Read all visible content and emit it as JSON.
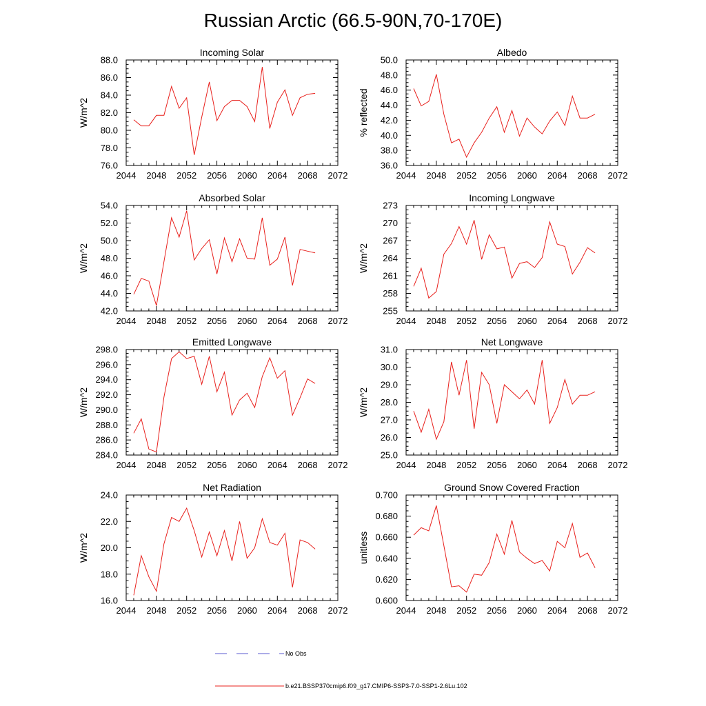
{
  "figure": {
    "title": "Russian Arctic (66.5-90N,70-170E)"
  },
  "colors": {
    "model_line": "#e8201c",
    "obs_line": "#5a5ad2",
    "axis": "#000000"
  },
  "legend": {
    "obs_label": "No Obs",
    "model_label": "b.e21.BSSP370cmip6.f09_g17.CMIP6-SSP3-7.0-SSP1-2.6Lu.102"
  },
  "chart_data": [
    {
      "type": "line",
      "title": "Incoming Solar",
      "ylabel": "W/m^2",
      "xlim": [
        2044,
        2072
      ],
      "xticks": [
        2044,
        2048,
        2052,
        2056,
        2060,
        2064,
        2068,
        2072
      ],
      "ylim": [
        76.0,
        88.0
      ],
      "yticks": [
        "76.0",
        "78.0",
        "80.0",
        "82.0",
        "84.0",
        "86.0",
        "88.0"
      ],
      "x": [
        2045,
        2046,
        2047,
        2048,
        2049,
        2050,
        2051,
        2052,
        2053,
        2054,
        2055,
        2056,
        2057,
        2058,
        2059,
        2060,
        2061,
        2062,
        2063,
        2064,
        2065,
        2066,
        2067,
        2068,
        2069
      ],
      "series": [
        {
          "values": [
            81.2,
            80.5,
            80.5,
            81.7,
            81.7,
            85.0,
            82.5,
            83.7,
            77.2,
            81.5,
            85.5,
            81.1,
            82.7,
            83.4,
            83.4,
            82.7,
            81.0,
            87.2,
            80.2,
            83.2,
            84.6,
            81.7,
            83.7,
            84.1,
            84.2
          ]
        }
      ]
    },
    {
      "type": "line",
      "title": "Albedo",
      "ylabel": "% reflected",
      "xlim": [
        2044,
        2072
      ],
      "xticks": [
        2044,
        2048,
        2052,
        2056,
        2060,
        2064,
        2068,
        2072
      ],
      "ylim": [
        36.0,
        50.0
      ],
      "yticks": [
        "36.0",
        "38.0",
        "40.0",
        "42.0",
        "44.0",
        "46.0",
        "48.0",
        "50.0"
      ],
      "x": [
        2045,
        2046,
        2047,
        2048,
        2049,
        2050,
        2051,
        2052,
        2053,
        2054,
        2055,
        2056,
        2057,
        2058,
        2059,
        2060,
        2061,
        2062,
        2063,
        2064,
        2065,
        2066,
        2067,
        2068,
        2069
      ],
      "series": [
        {
          "values": [
            46.2,
            43.9,
            44.5,
            48.1,
            42.8,
            39.0,
            39.5,
            37.1,
            39.0,
            40.4,
            42.3,
            43.8,
            40.4,
            43.3,
            39.9,
            42.3,
            41.1,
            40.2,
            41.9,
            43.1,
            41.3,
            45.2,
            42.3,
            42.3,
            42.8
          ]
        }
      ]
    },
    {
      "type": "line",
      "title": "Absorbed Solar",
      "ylabel": "W/m^2",
      "xlim": [
        2044,
        2072
      ],
      "xticks": [
        2044,
        2048,
        2052,
        2056,
        2060,
        2064,
        2068,
        2072
      ],
      "ylim": [
        42.0,
        54.0
      ],
      "yticks": [
        "42.0",
        "44.0",
        "46.0",
        "48.0",
        "50.0",
        "52.0",
        "54.0"
      ],
      "x": [
        2045,
        2046,
        2047,
        2048,
        2049,
        2050,
        2051,
        2052,
        2053,
        2054,
        2055,
        2056,
        2057,
        2058,
        2059,
        2060,
        2061,
        2062,
        2063,
        2064,
        2065,
        2066,
        2067,
        2068,
        2069
      ],
      "series": [
        {
          "values": [
            43.9,
            45.7,
            45.4,
            42.6,
            47.6,
            52.6,
            50.4,
            53.4,
            47.8,
            49.1,
            50.1,
            46.2,
            50.3,
            47.6,
            50.2,
            48.0,
            47.9,
            52.6,
            47.2,
            47.9,
            50.4,
            44.9,
            49.0,
            48.8,
            48.6
          ]
        }
      ]
    },
    {
      "type": "line",
      "title": "Incoming Longwave",
      "ylabel": "W/m^2",
      "xlim": [
        2044,
        2072
      ],
      "xticks": [
        2044,
        2048,
        2052,
        2056,
        2060,
        2064,
        2068,
        2072
      ],
      "ylim": [
        255,
        273
      ],
      "yticks": [
        "255",
        "258",
        "261",
        "264",
        "267",
        "270",
        "273"
      ],
      "x": [
        2045,
        2046,
        2047,
        2048,
        2049,
        2050,
        2051,
        2052,
        2053,
        2054,
        2055,
        2056,
        2057,
        2058,
        2059,
        2060,
        2061,
        2062,
        2063,
        2064,
        2065,
        2066,
        2067,
        2068,
        2069
      ],
      "series": [
        {
          "values": [
            259.2,
            262.3,
            257.2,
            258.3,
            264.7,
            266.5,
            269.4,
            266.4,
            270.5,
            263.8,
            268.0,
            265.6,
            265.9,
            260.6,
            263.1,
            263.4,
            262.4,
            264.1,
            270.2,
            266.4,
            266.0,
            261.3,
            263.3,
            265.8,
            264.9
          ]
        }
      ]
    },
    {
      "type": "line",
      "title": "Emitted Longwave",
      "ylabel": "W/m^2",
      "xlim": [
        2044,
        2072
      ],
      "xticks": [
        2044,
        2048,
        2052,
        2056,
        2060,
        2064,
        2068,
        2072
      ],
      "ylim": [
        284.0,
        298.0
      ],
      "yticks": [
        "284.0",
        "286.0",
        "288.0",
        "290.0",
        "292.0",
        "294.0",
        "296.0",
        "298.0"
      ],
      "x": [
        2045,
        2046,
        2047,
        2048,
        2049,
        2050,
        2051,
        2052,
        2053,
        2054,
        2055,
        2056,
        2057,
        2058,
        2059,
        2060,
        2061,
        2062,
        2063,
        2064,
        2065,
        2066,
        2067,
        2068,
        2069
      ],
      "series": [
        {
          "values": [
            286.9,
            288.8,
            284.8,
            284.4,
            291.7,
            296.8,
            297.7,
            296.8,
            297.1,
            293.4,
            297.1,
            292.4,
            295.0,
            289.3,
            291.3,
            292.2,
            290.3,
            294.4,
            296.9,
            294.2,
            295.2,
            289.3,
            291.6,
            294.1,
            293.5
          ]
        }
      ]
    },
    {
      "type": "line",
      "title": "Net Longwave",
      "ylabel": "W/m^2",
      "xlim": [
        2044,
        2072
      ],
      "xticks": [
        2044,
        2048,
        2052,
        2056,
        2060,
        2064,
        2068,
        2072
      ],
      "ylim": [
        25.0,
        31.0
      ],
      "yticks": [
        "25.0",
        "26.0",
        "27.0",
        "28.0",
        "29.0",
        "30.0",
        "31.0"
      ],
      "x": [
        2045,
        2046,
        2047,
        2048,
        2049,
        2050,
        2051,
        2052,
        2053,
        2054,
        2055,
        2056,
        2057,
        2058,
        2059,
        2060,
        2061,
        2062,
        2063,
        2064,
        2065,
        2066,
        2067,
        2068,
        2069
      ],
      "series": [
        {
          "values": [
            27.5,
            26.3,
            27.6,
            25.9,
            26.9,
            30.3,
            28.4,
            30.4,
            26.5,
            29.7,
            29.0,
            26.8,
            29.0,
            28.6,
            28.2,
            28.7,
            27.9,
            30.4,
            26.8,
            27.7,
            29.3,
            27.9,
            28.4,
            28.4,
            28.6
          ]
        }
      ]
    },
    {
      "type": "line",
      "title": "Net Radiation",
      "ylabel": "W/m^2",
      "xlim": [
        2044,
        2072
      ],
      "xticks": [
        2044,
        2048,
        2052,
        2056,
        2060,
        2064,
        2068,
        2072
      ],
      "ylim": [
        16.0,
        24.0
      ],
      "yticks": [
        "16.0",
        "18.0",
        "20.0",
        "22.0",
        "24.0"
      ],
      "x": [
        2045,
        2046,
        2047,
        2048,
        2049,
        2050,
        2051,
        2052,
        2053,
        2054,
        2055,
        2056,
        2057,
        2058,
        2059,
        2060,
        2061,
        2062,
        2063,
        2064,
        2065,
        2066,
        2067,
        2068,
        2069
      ],
      "series": [
        {
          "values": [
            16.4,
            19.4,
            17.8,
            16.7,
            20.3,
            22.3,
            22.0,
            23.0,
            21.3,
            19.3,
            21.2,
            19.4,
            21.3,
            19.0,
            22.0,
            19.2,
            20.0,
            22.2,
            20.4,
            20.2,
            21.1,
            17.0,
            20.6,
            20.4,
            19.9
          ]
        }
      ]
    },
    {
      "type": "line",
      "title": "Ground Snow Covered Fraction",
      "ylabel": "unitless",
      "xlim": [
        2044,
        2072
      ],
      "xticks": [
        2044,
        2048,
        2052,
        2056,
        2060,
        2064,
        2068,
        2072
      ],
      "ylim": [
        0.6,
        0.7
      ],
      "yticks": [
        "0.600",
        "0.620",
        "0.640",
        "0.660",
        "0.680",
        "0.700"
      ],
      "x": [
        2045,
        2046,
        2047,
        2048,
        2049,
        2050,
        2051,
        2052,
        2053,
        2054,
        2055,
        2056,
        2057,
        2058,
        2059,
        2060,
        2061,
        2062,
        2063,
        2064,
        2065,
        2066,
        2067,
        2068,
        2069
      ],
      "series": [
        {
          "values": [
            0.662,
            0.669,
            0.666,
            0.69,
            0.652,
            0.613,
            0.614,
            0.608,
            0.625,
            0.624,
            0.636,
            0.663,
            0.644,
            0.676,
            0.646,
            0.64,
            0.635,
            0.638,
            0.628,
            0.656,
            0.65,
            0.673,
            0.641,
            0.645,
            0.631
          ]
        }
      ]
    }
  ]
}
